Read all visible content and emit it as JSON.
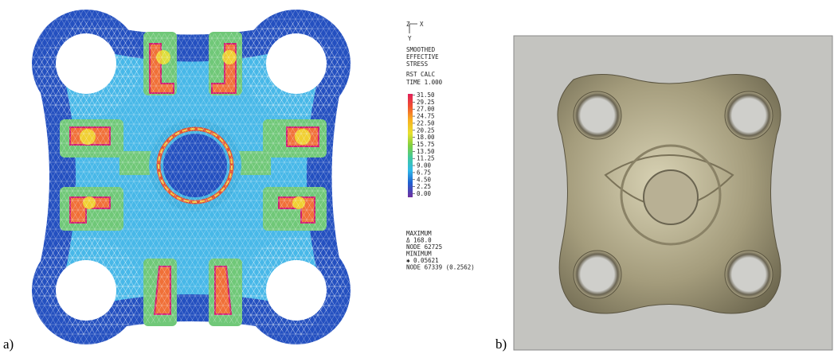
{
  "panels": {
    "a": "a)",
    "b": "b)"
  },
  "axes_triad": {
    "z": "Z",
    "x": "X",
    "y": "Y"
  },
  "legend": {
    "title": [
      "SMOOTHED",
      "EFFECTIVE",
      "STRESS"
    ],
    "step": "RST CALC",
    "time": "TIME 1.000",
    "levels": [
      "31.50",
      "29.25",
      "27.00",
      "24.75",
      "22.50",
      "20.25",
      "18.00",
      "15.75",
      "13.50",
      "11.25",
      "9.00",
      "6.75",
      "4.50",
      "2.25",
      "0.00"
    ],
    "extremes": [
      "MAXIMUM",
      "Δ 168.0",
      "NODE 62725",
      "MINIMUM",
      "✱ 0.05621",
      "NODE 67339 (0.2562)"
    ]
  }
}
